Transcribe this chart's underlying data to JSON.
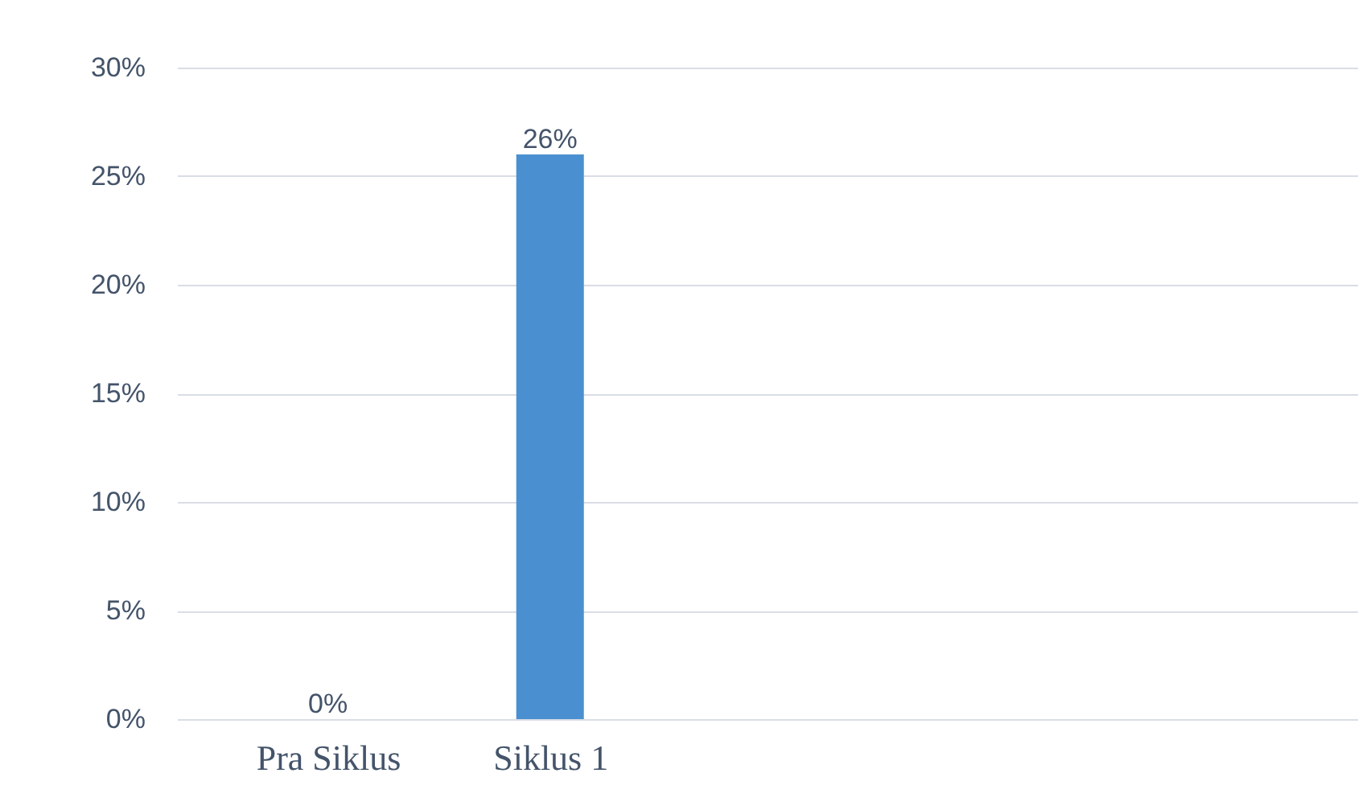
{
  "chart_data": {
    "type": "bar",
    "categories": [
      "Pra Siklus",
      "Siklus 1"
    ],
    "values": [
      0,
      26
    ],
    "color": "#4a90d0",
    "value_labels": [
      "0%",
      "26%"
    ],
    "ylim": [
      0,
      30
    ],
    "yticks": [
      {
        "value": 0,
        "label": "0%"
      },
      {
        "value": 5,
        "label": "5%"
      },
      {
        "value": 10,
        "label": "10%"
      },
      {
        "value": 15,
        "label": "15%"
      },
      {
        "value": 20,
        "label": "20%"
      },
      {
        "value": 25,
        "label": "25%"
      },
      {
        "value": 30,
        "label": "30%"
      }
    ],
    "grid": "y"
  }
}
